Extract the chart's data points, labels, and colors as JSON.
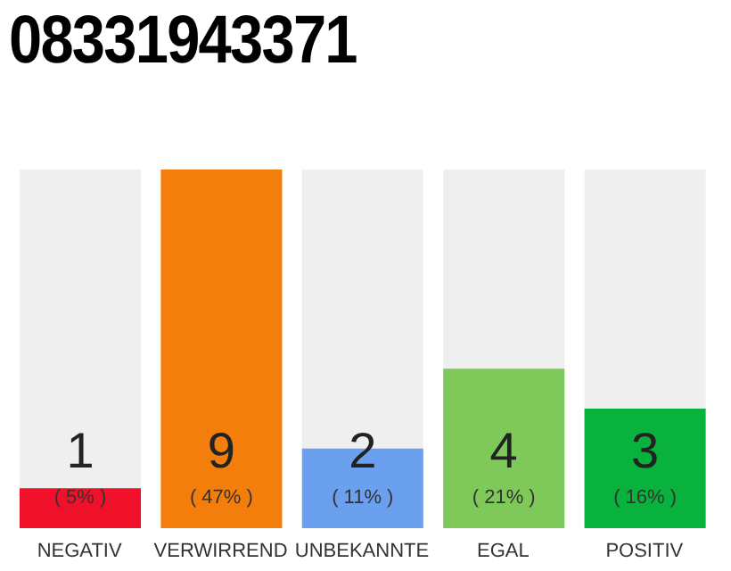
{
  "chart_data": {
    "type": "bar",
    "title": "08331943371",
    "categories": [
      "NEGATIV",
      "VERWIRREND",
      "UNBEKANNTE",
      "EGAL",
      "POSITIV"
    ],
    "values": [
      1,
      9,
      2,
      4,
      3
    ],
    "colors": [
      "#f0102a",
      "#f47e0b",
      "#6aa0ed",
      "#7ec95a",
      "#09b23c"
    ],
    "data_labels": true,
    "annotations": [
      "( 5% )",
      "( 47% )",
      "( 11% )",
      "( 21% )",
      "( 16% )"
    ],
    "grid": false,
    "legend": false
  }
}
